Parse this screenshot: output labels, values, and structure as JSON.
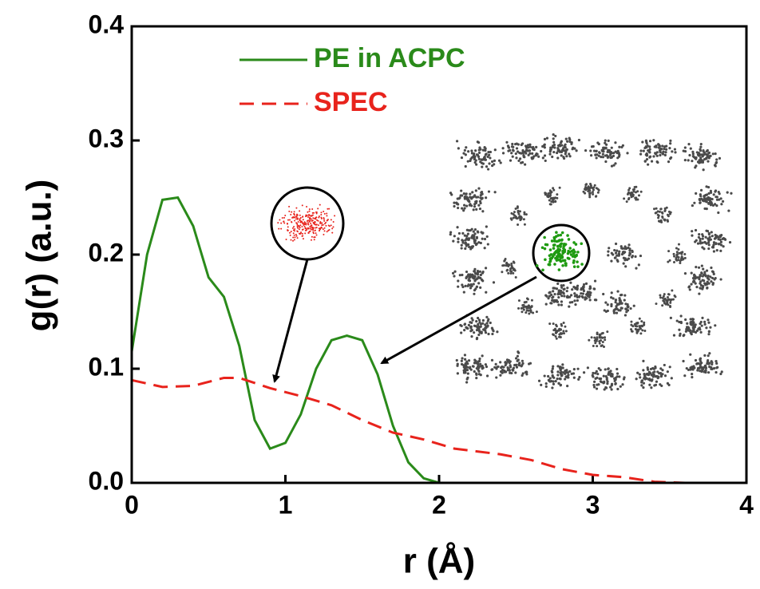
{
  "chart_data": {
    "type": "line",
    "x_label": "r (Å)",
    "y_label": "g(r) (a.u.)",
    "xlim": [
      0,
      4
    ],
    "xticks": [
      0,
      1,
      2,
      3,
      4
    ],
    "ylim": [
      0,
      0.4
    ],
    "yticks": [
      {
        "value": 0,
        "label": "0.0"
      },
      0.1,
      0.2,
      0.3,
      0.4
    ],
    "legend": "upper left",
    "series": [
      {
        "name": "PE in ACPC",
        "color": "#2a8a1a",
        "dash": "solid",
        "x": [
          0,
          0.1,
          0.2,
          0.3,
          0.4,
          0.5,
          0.6,
          0.7,
          0.8,
          0.9,
          1.0,
          1.1,
          1.2,
          1.3,
          1.4,
          1.5,
          1.6,
          1.7,
          1.8,
          1.9,
          2.0,
          2.5,
          3.0,
          3.5,
          4.0
        ],
        "values": [
          0.115,
          0.2,
          0.248,
          0.25,
          0.225,
          0.18,
          0.163,
          0.12,
          0.055,
          0.03,
          0.035,
          0.06,
          0.1,
          0.125,
          0.129,
          0.125,
          0.095,
          0.05,
          0.018,
          0.004,
          0,
          0,
          0,
          0,
          0
        ]
      },
      {
        "name": "SPEC",
        "color": "#e8231c",
        "dash": "dashed",
        "x": [
          0,
          0.2,
          0.4,
          0.6,
          0.7,
          0.9,
          1.1,
          1.3,
          1.5,
          1.7,
          1.9,
          2.1,
          2.4,
          2.6,
          2.8,
          3.0,
          3.2,
          3.4,
          3.6,
          4.0
        ],
        "values": [
          0.09,
          0.084,
          0.085,
          0.092,
          0.092,
          0.083,
          0.076,
          0.068,
          0.055,
          0.044,
          0.038,
          0.03,
          0.025,
          0.02,
          0.012,
          0.007,
          0.005,
          0.001,
          0,
          0
        ]
      }
    ]
  }
}
